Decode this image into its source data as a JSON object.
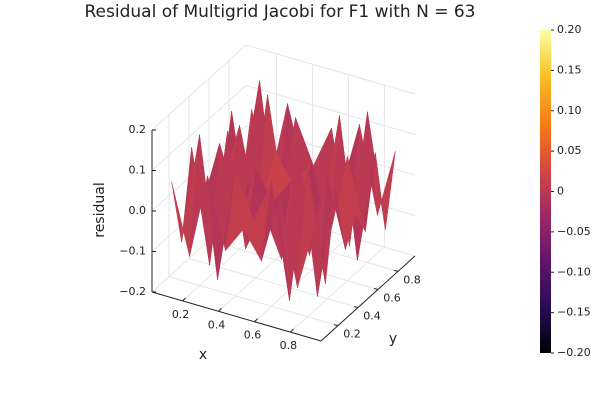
{
  "chart_data": {
    "type": "surface",
    "title": "Residual of Multigrid Jacobi for F1 with N = 63",
    "x_label": "x",
    "y_label": "y",
    "z_label": "residual",
    "x": [
      0.1,
      0.2,
      0.3,
      0.4,
      0.5,
      0.6,
      0.7,
      0.8,
      0.9
    ],
    "y": [
      0.1,
      0.2,
      0.3,
      0.4,
      0.5,
      0.6,
      0.7,
      0.8,
      0.9
    ],
    "z": [
      [
        0.066,
        -0.106,
        0.106,
        -0.066,
        0,
        -0.066,
        0.106,
        -0.106,
        0.066
      ],
      [
        -0.106,
        0.172,
        -0.172,
        0.106,
        0,
        0.106,
        -0.172,
        0.172,
        -0.106
      ],
      [
        0.106,
        -0.172,
        0.172,
        -0.106,
        0,
        -0.106,
        0.172,
        -0.172,
        0.106
      ],
      [
        -0.066,
        0.106,
        -0.106,
        0.066,
        0,
        0.066,
        -0.106,
        0.106,
        -0.066
      ],
      [
        0,
        0,
        0,
        0,
        0,
        0,
        0,
        0,
        0
      ],
      [
        -0.066,
        0.106,
        -0.106,
        0.066,
        0,
        0.066,
        -0.106,
        0.106,
        -0.066
      ],
      [
        0.106,
        -0.172,
        0.172,
        -0.106,
        0,
        -0.106,
        0.172,
        -0.172,
        0.106
      ],
      [
        -0.106,
        0.172,
        -0.172,
        0.106,
        0,
        0.106,
        -0.172,
        0.172,
        -0.106
      ],
      [
        0.066,
        -0.106,
        0.106,
        -0.066,
        0,
        -0.066,
        0.106,
        -0.106,
        0.066
      ]
    ],
    "xlim": [
      0.03,
      0.97
    ],
    "ylim": [
      0.03,
      0.97
    ],
    "zlim": [
      -0.2,
      0.2
    ],
    "xticks": [
      0.2,
      0.4,
      0.6,
      0.8
    ],
    "yticks": [
      0.2,
      0.4,
      0.6,
      0.8
    ],
    "zticks": [
      {
        "value": -0.2,
        "label": "−0.2"
      },
      {
        "value": -0.1,
        "label": "−0.1"
      },
      {
        "value": 0,
        "label": "0.0"
      },
      0.1,
      0.2
    ],
    "colormap": "inferno",
    "clim": [
      -0.2,
      0.2
    ],
    "cticks": [
      {
        "value": 0.2,
        "label": "0.20"
      },
      0.15,
      {
        "value": 0.1,
        "label": "0.10"
      },
      0.05,
      0,
      {
        "value": -0.05,
        "label": "−0.05"
      },
      {
        "value": -0.1,
        "label": "−0.10"
      },
      {
        "value": -0.15,
        "label": "−0.15"
      },
      {
        "value": -0.2,
        "label": "−0.20"
      }
    ],
    "grid": true
  }
}
